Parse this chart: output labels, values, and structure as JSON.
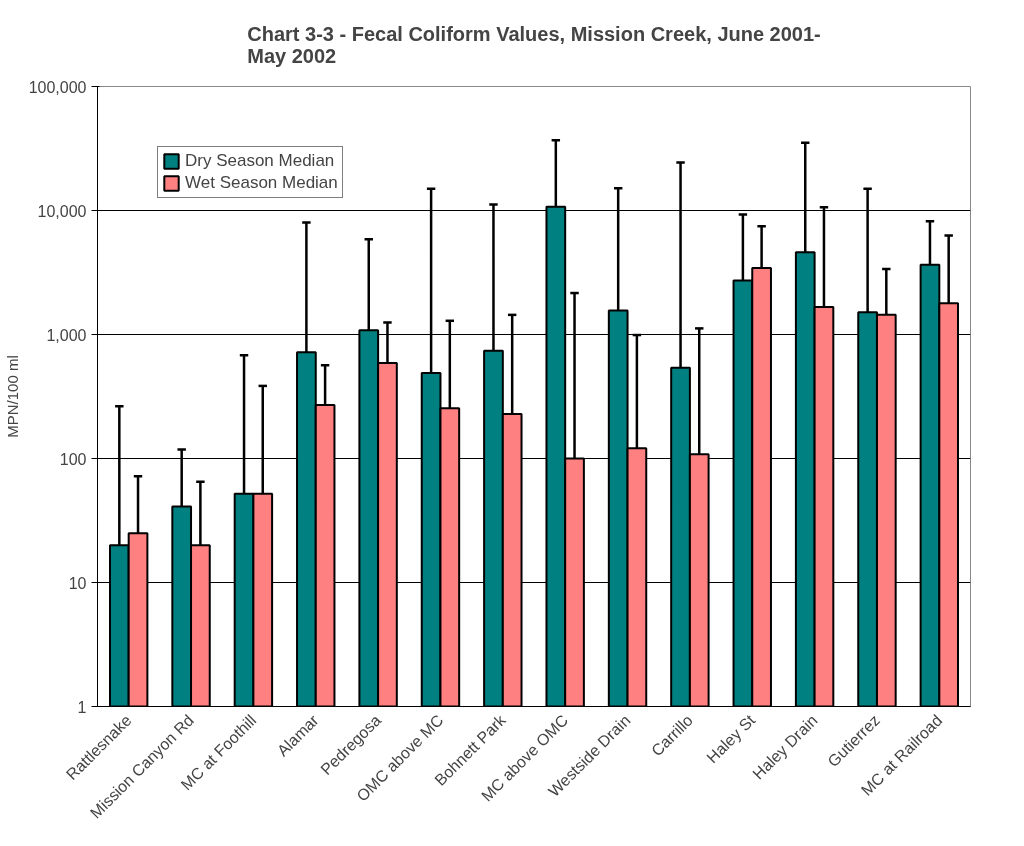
{
  "chart_data": {
    "type": "bar",
    "title": "Chart 3-3 - Fecal Coliform Values, Mission Creek, June 2001-\nMay 2002",
    "ylabel": "MPN/100 ml",
    "categories": [
      "Rattlesnake",
      "Mission Canyon Rd",
      "MC at Foothill",
      "Alamar",
      "Pedregosa",
      "OMC above MC",
      "Bohnett Park",
      "MC above OMC",
      "Westside Drain",
      "Carrillo",
      "Haley St",
      "Haley Drain",
      "Gutierrez",
      "MC at Railroad"
    ],
    "series": [
      {
        "name": "Dry Season Median",
        "color": "#008080",
        "values": [
          20,
          41,
          52,
          720,
          1080,
          490,
          740,
          10700,
          1560,
          540,
          2730,
          4600,
          1510,
          3650
        ],
        "errors": [
          [
            20,
            264
          ],
          [
            41,
            118
          ],
          [
            52,
            680
          ],
          [
            720,
            8000
          ],
          [
            1080,
            5850
          ],
          [
            490,
            15000
          ],
          [
            740,
            11200
          ],
          [
            10700,
            36900
          ],
          [
            1560,
            15100
          ],
          [
            540,
            24400
          ],
          [
            2730,
            9300
          ],
          [
            4600,
            35200
          ],
          [
            1510,
            15000
          ],
          [
            3650,
            8200
          ]
        ]
      },
      {
        "name": "Wet Season Median",
        "color": "#ff8080",
        "values": [
          25,
          20,
          52,
          270,
          590,
          254,
          229,
          100,
          121,
          108,
          3430,
          1670,
          1440,
          1790
        ],
        "errors": [
          [
            25,
            72
          ],
          [
            20,
            65
          ],
          [
            52,
            385
          ],
          [
            270,
            565
          ],
          [
            590,
            1250
          ],
          [
            254,
            1290
          ],
          [
            229,
            1440
          ],
          [
            100,
            2160
          ],
          [
            121,
            990
          ],
          [
            108,
            1120
          ],
          [
            3430,
            7460
          ],
          [
            1670,
            10600
          ],
          [
            1440,
            3380
          ],
          [
            1790,
            6280
          ]
        ]
      }
    ],
    "log": true,
    "ylim": [
      1,
      100000
    ],
    "yticks": [
      {
        "value": 1,
        "label": "1"
      },
      {
        "value": 10,
        "label": "10"
      },
      {
        "value": 100,
        "label": "100"
      },
      {
        "value": 1000,
        "label": "1,000"
      },
      {
        "value": 10000,
        "label": "10,000"
      },
      {
        "value": 100000,
        "label": "100,000"
      }
    ],
    "grid": "y",
    "legend": "top left"
  }
}
